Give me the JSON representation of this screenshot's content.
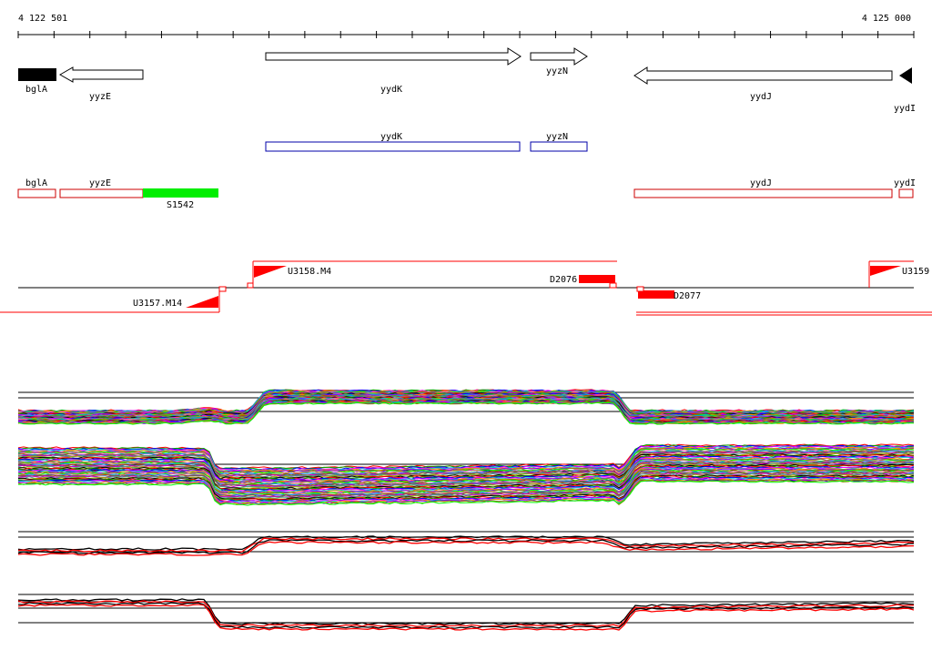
{
  "ruler": {
    "start_label": "4 122 501",
    "end_label": "4 125 000"
  },
  "genes": [
    {
      "name": "bglA",
      "strand": "-",
      "filled": true
    },
    {
      "name": "yyzE",
      "strand": "-",
      "filled": false
    },
    {
      "name": "yydK",
      "strand": "+",
      "filled": false
    },
    {
      "name": "yyzN",
      "strand": "+",
      "filled": false
    },
    {
      "name": "yydJ",
      "strand": "-",
      "filled": false
    },
    {
      "name": "yydI",
      "strand": "-",
      "filled": true
    }
  ],
  "plus_strand_features": [
    "yydK",
    "yyzN"
  ],
  "minus_strand_features": [
    "bglA",
    "yyzE",
    "yydJ",
    "yydI"
  ],
  "highlighted_feature": "S1542",
  "transcription_units": [
    "U3157.M14",
    "U3158.M4",
    "U3159",
    "D2076",
    "D2077"
  ],
  "colors": {
    "plus_feature": "#0000aa",
    "minus_feature": "#cc0000",
    "highlight": "#00ee00",
    "unit": "#ff0000",
    "gene_fill": "#000000"
  },
  "expression_panels": [
    {
      "strand": "+",
      "profiles": "many",
      "palette": "multicolor"
    },
    {
      "strand": "-",
      "profiles": "many",
      "palette": "multicolor"
    },
    {
      "strand": "+",
      "profiles": "few",
      "palette": "black-red"
    },
    {
      "strand": "-",
      "profiles": "few",
      "palette": "black-red"
    }
  ]
}
